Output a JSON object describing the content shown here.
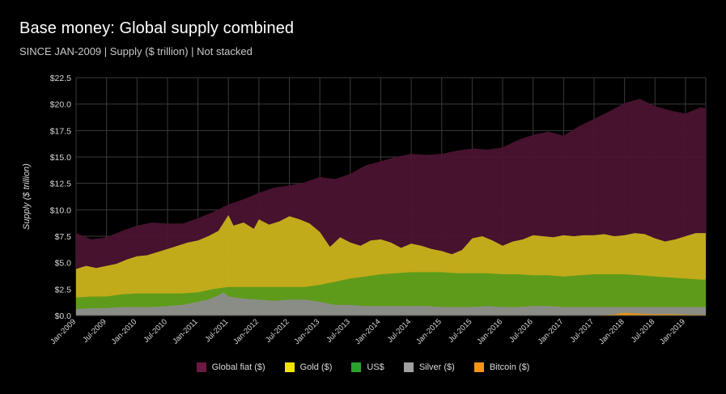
{
  "title": "Base money: Global supply combined",
  "subtitle": "SINCE JAN-2009 | Supply ($ trillion) | Not stacked",
  "chart_data": {
    "type": "area",
    "title": "Base money: Global supply combined",
    "subtitle": "SINCE JAN-2009 | Supply ($ trillion) | Not stacked",
    "xlabel": "",
    "ylabel": "Supply ($ trillion)",
    "ylim": [
      0,
      22.5
    ],
    "yticks": [
      0,
      2.5,
      5,
      7.5,
      10,
      12.5,
      15,
      17.5,
      20,
      22.5
    ],
    "ytick_labels": [
      "$0.0",
      "$2.5",
      "$5.0",
      "$7.5",
      "$10.0",
      "$12.5",
      "$15.0",
      "$17.5",
      "$20.0",
      "$22.5"
    ],
    "grid": true,
    "stacked": false,
    "x_start": "2009-01",
    "x_end": "2019-04",
    "x_tick_labels": [
      "Jan-2009",
      "Jul-2009",
      "Jan-2010",
      "Jul-2010",
      "Jan-2011",
      "Jul-2011",
      "Jan-2012",
      "Jul-2012",
      "Jan-2013",
      "Jul-2013",
      "Jan-2014",
      "Jul-2014",
      "Jan-2015",
      "Jul-2015",
      "Jan-2016",
      "Jul-2016",
      "Jan-2017",
      "Jul-2017",
      "Jan-2018",
      "Jul-2018",
      "Jan-2019"
    ],
    "series": [
      {
        "name": "Global fiat ($)",
        "color": "#4a1330",
        "points": [
          [
            0,
            7.8
          ],
          [
            3,
            7.2
          ],
          [
            6,
            7.4
          ],
          [
            9,
            8.0
          ],
          [
            12,
            8.5
          ],
          [
            15,
            8.8
          ],
          [
            18,
            8.7
          ],
          [
            21,
            8.7
          ],
          [
            24,
            9.2
          ],
          [
            27,
            9.8
          ],
          [
            30,
            10.5
          ],
          [
            33,
            11.0
          ],
          [
            36,
            11.6
          ],
          [
            39,
            12.1
          ],
          [
            42,
            12.3
          ],
          [
            45,
            12.6
          ],
          [
            48,
            13.1
          ],
          [
            51,
            12.9
          ],
          [
            54,
            13.4
          ],
          [
            57,
            14.2
          ],
          [
            60,
            14.6
          ],
          [
            63,
            15.0
          ],
          [
            66,
            15.3
          ],
          [
            69,
            15.2
          ],
          [
            72,
            15.3
          ],
          [
            75,
            15.6
          ],
          [
            78,
            15.8
          ],
          [
            81,
            15.7
          ],
          [
            84,
            15.9
          ],
          [
            87,
            16.6
          ],
          [
            90,
            17.1
          ],
          [
            93,
            17.4
          ],
          [
            96,
            17.0
          ],
          [
            99,
            17.9
          ],
          [
            102,
            18.6
          ],
          [
            105,
            19.3
          ],
          [
            108,
            20.1
          ],
          [
            111,
            20.5
          ],
          [
            114,
            19.8
          ],
          [
            117,
            19.4
          ],
          [
            120,
            19.1
          ],
          [
            123,
            19.7
          ],
          [
            124,
            19.6
          ]
        ]
      },
      {
        "name": "Gold ($)",
        "color": "#c8b41a",
        "points": [
          [
            0,
            4.4
          ],
          [
            2,
            4.7
          ],
          [
            4,
            4.5
          ],
          [
            6,
            4.7
          ],
          [
            8,
            4.9
          ],
          [
            10,
            5.3
          ],
          [
            12,
            5.6
          ],
          [
            14,
            5.7
          ],
          [
            16,
            6.0
          ],
          [
            18,
            6.3
          ],
          [
            20,
            6.6
          ],
          [
            22,
            6.9
          ],
          [
            24,
            7.1
          ],
          [
            26,
            7.5
          ],
          [
            28,
            8.0
          ],
          [
            30,
            9.5
          ],
          [
            31,
            8.5
          ],
          [
            33,
            8.8
          ],
          [
            35,
            8.2
          ],
          [
            36,
            9.1
          ],
          [
            38,
            8.6
          ],
          [
            40,
            8.9
          ],
          [
            42,
            9.4
          ],
          [
            44,
            9.1
          ],
          [
            46,
            8.7
          ],
          [
            48,
            7.9
          ],
          [
            50,
            6.5
          ],
          [
            52,
            7.4
          ],
          [
            54,
            6.9
          ],
          [
            56,
            6.6
          ],
          [
            58,
            7.1
          ],
          [
            60,
            7.2
          ],
          [
            62,
            6.9
          ],
          [
            64,
            6.4
          ],
          [
            66,
            6.8
          ],
          [
            68,
            6.6
          ],
          [
            70,
            6.3
          ],
          [
            72,
            6.1
          ],
          [
            74,
            5.8
          ],
          [
            76,
            6.2
          ],
          [
            78,
            7.3
          ],
          [
            80,
            7.5
          ],
          [
            82,
            7.1
          ],
          [
            84,
            6.6
          ],
          [
            86,
            7.0
          ],
          [
            88,
            7.2
          ],
          [
            90,
            7.6
          ],
          [
            92,
            7.5
          ],
          [
            94,
            7.4
          ],
          [
            96,
            7.6
          ],
          [
            98,
            7.5
          ],
          [
            100,
            7.6
          ],
          [
            102,
            7.6
          ],
          [
            104,
            7.7
          ],
          [
            106,
            7.5
          ],
          [
            108,
            7.6
          ],
          [
            110,
            7.8
          ],
          [
            112,
            7.7
          ],
          [
            114,
            7.3
          ],
          [
            116,
            7.0
          ],
          [
            118,
            7.2
          ],
          [
            120,
            7.5
          ],
          [
            122,
            7.8
          ],
          [
            124,
            7.8
          ]
        ]
      },
      {
        "name": "US$",
        "color": "#5a9a1a",
        "points": [
          [
            0,
            1.7
          ],
          [
            3,
            1.8
          ],
          [
            6,
            1.8
          ],
          [
            9,
            2.0
          ],
          [
            12,
            2.1
          ],
          [
            15,
            2.1
          ],
          [
            18,
            2.1
          ],
          [
            21,
            2.1
          ],
          [
            24,
            2.2
          ],
          [
            27,
            2.5
          ],
          [
            30,
            2.7
          ],
          [
            33,
            2.7
          ],
          [
            36,
            2.7
          ],
          [
            39,
            2.7
          ],
          [
            42,
            2.7
          ],
          [
            45,
            2.7
          ],
          [
            48,
            2.9
          ],
          [
            51,
            3.2
          ],
          [
            54,
            3.5
          ],
          [
            57,
            3.7
          ],
          [
            60,
            3.9
          ],
          [
            63,
            4.0
          ],
          [
            66,
            4.1
          ],
          [
            69,
            4.1
          ],
          [
            72,
            4.1
          ],
          [
            75,
            4.0
          ],
          [
            78,
            4.0
          ],
          [
            81,
            4.0
          ],
          [
            84,
            3.9
          ],
          [
            87,
            3.9
          ],
          [
            90,
            3.8
          ],
          [
            93,
            3.8
          ],
          [
            96,
            3.7
          ],
          [
            99,
            3.8
          ],
          [
            102,
            3.9
          ],
          [
            105,
            3.9
          ],
          [
            108,
            3.9
          ],
          [
            111,
            3.8
          ],
          [
            114,
            3.7
          ],
          [
            117,
            3.6
          ],
          [
            120,
            3.5
          ],
          [
            123,
            3.4
          ],
          [
            124,
            3.4
          ]
        ]
      },
      {
        "name": "Silver ($)",
        "color": "#8c8c8c",
        "points": [
          [
            0,
            0.6
          ],
          [
            3,
            0.7
          ],
          [
            6,
            0.7
          ],
          [
            9,
            0.8
          ],
          [
            12,
            0.8
          ],
          [
            15,
            0.8
          ],
          [
            18,
            0.9
          ],
          [
            21,
            1.0
          ],
          [
            24,
            1.3
          ],
          [
            26,
            1.5
          ],
          [
            28,
            1.9
          ],
          [
            29,
            2.2
          ],
          [
            30,
            1.8
          ],
          [
            33,
            1.6
          ],
          [
            36,
            1.5
          ],
          [
            39,
            1.4
          ],
          [
            42,
            1.5
          ],
          [
            45,
            1.5
          ],
          [
            48,
            1.3
          ],
          [
            51,
            1.0
          ],
          [
            54,
            1.0
          ],
          [
            57,
            0.9
          ],
          [
            60,
            0.9
          ],
          [
            63,
            0.9
          ],
          [
            66,
            0.9
          ],
          [
            69,
            0.9
          ],
          [
            72,
            0.8
          ],
          [
            75,
            0.8
          ],
          [
            78,
            0.8
          ],
          [
            81,
            0.9
          ],
          [
            84,
            0.8
          ],
          [
            87,
            0.8
          ],
          [
            90,
            0.9
          ],
          [
            93,
            0.9
          ],
          [
            96,
            0.8
          ],
          [
            99,
            0.8
          ],
          [
            102,
            0.8
          ],
          [
            105,
            0.8
          ],
          [
            108,
            0.8
          ],
          [
            111,
            0.8
          ],
          [
            114,
            0.8
          ],
          [
            117,
            0.8
          ],
          [
            120,
            0.8
          ],
          [
            123,
            0.8
          ],
          [
            124,
            0.8
          ]
        ]
      },
      {
        "name": "Bitcoin ($)",
        "color": "#f0960a",
        "points": [
          [
            0,
            0
          ],
          [
            100,
            0
          ],
          [
            104,
            0.05
          ],
          [
            106,
            0.1
          ],
          [
            107,
            0.2
          ],
          [
            108,
            0.25
          ],
          [
            110,
            0.2
          ],
          [
            112,
            0.15
          ],
          [
            114,
            0.12
          ],
          [
            116,
            0.13
          ],
          [
            118,
            0.12
          ],
          [
            120,
            0.1
          ],
          [
            122,
            0.07
          ],
          [
            124,
            0.08
          ]
        ]
      }
    ],
    "legend": [
      "Global fiat ($)",
      "Gold ($)",
      "US$",
      "Silver ($)",
      "Bitcoin ($)"
    ],
    "legend_position": "bottom-center"
  }
}
